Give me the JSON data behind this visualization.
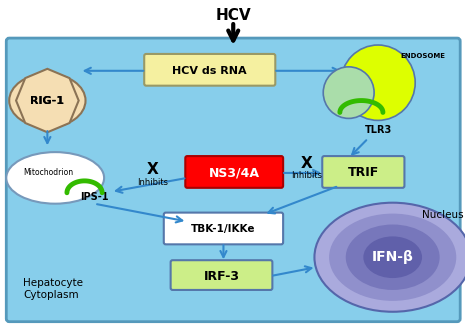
{
  "outer_bg": "#FFFFFF",
  "bg_color": "#87CEEB",
  "title_text": "HCV",
  "hcv_ds_rna_text": "HCV ds RNA",
  "ns34a_text": "NS3/4A",
  "tbk_text": "TBK-1/IKKe",
  "irf_text": "IRF-3",
  "trif_text": "TRIF",
  "rig1_text": "RIG-1",
  "mito_text": "Mitochodrion",
  "ips1_text": "IPS-1",
  "endosome_text": "ENDOSOME",
  "tlr3_text": "TLR3",
  "ifnb_text": "IFN-β",
  "nucleus_text": "Nucleus",
  "hepatocyte_text": "Hepatocyte\nCytoplasm",
  "inhibits_text": "Inhibits",
  "x_text": "X",
  "arrow_color": "#3388CC",
  "black_color": "#000000",
  "hcv_box_color": "#F5F0A0",
  "ns34a_color": "#FF0000",
  "trif_color": "#CCEE88",
  "irf_color": "#CCEE88",
  "tbk_color": "#FFFFFF",
  "rig_color": "#F5DEB3",
  "mito_color": "#FFFFFF",
  "nucleus_color_outer": "#AAAADD",
  "nucleus_color_inner": "#6666CC",
  "endosome_yellow": "#DDFF00",
  "endosome_green": "#AADDAA",
  "green_arc": "#33BB00"
}
